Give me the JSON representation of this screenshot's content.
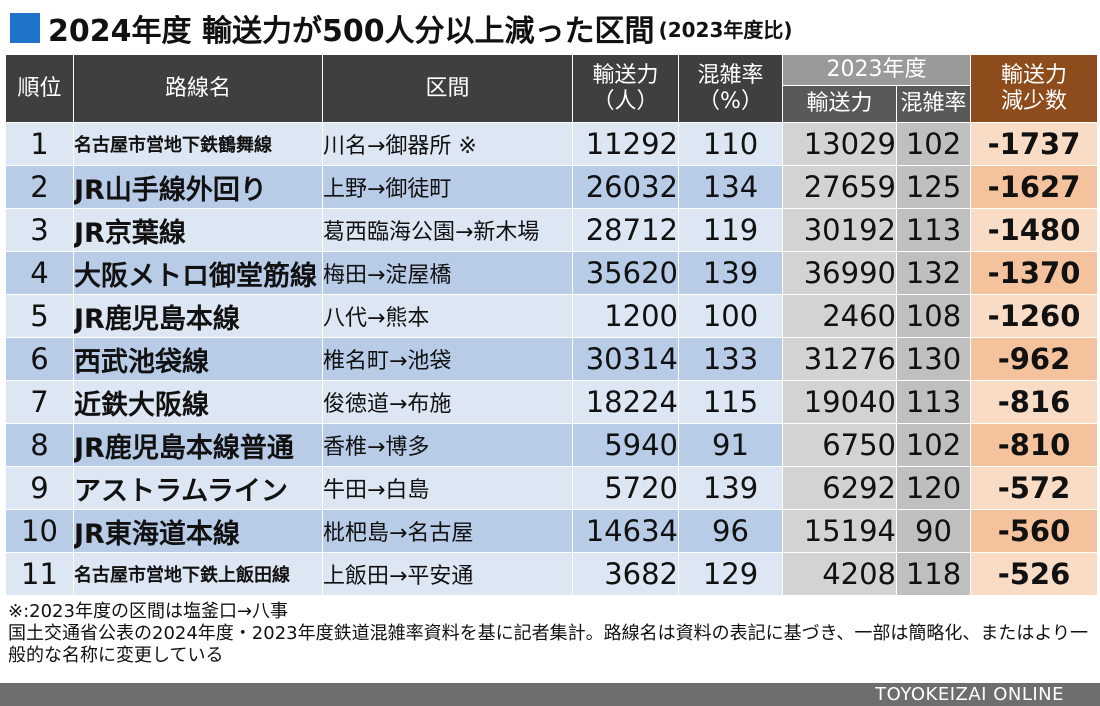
{
  "title": {
    "main": "2024年度 輸送力が500人分以上減った区間",
    "sub": "(2023年度比)"
  },
  "headers": {
    "rank": "順位",
    "line": "路線名",
    "section": "区間",
    "capacity": "輸送力\n（人）",
    "congestion": "混雑率\n（%）",
    "group_2023": "2023年度",
    "capacity_2023": "輸送力",
    "congestion_2023": "混雑率",
    "decrease": "輸送力\n減少数"
  },
  "rows": [
    {
      "rank": "1",
      "line": "名古屋市営地下鉄鶴舞線",
      "section": "川名→御器所 ※",
      "capacity": "11292",
      "congestion": "110",
      "capacity_2023": "13029",
      "congestion_2023": "102",
      "decrease": "-1737"
    },
    {
      "rank": "2",
      "line": "JR山手線外回り",
      "section": "上野→御徒町",
      "capacity": "26032",
      "congestion": "134",
      "capacity_2023": "27659",
      "congestion_2023": "125",
      "decrease": "-1627"
    },
    {
      "rank": "3",
      "line": "JR京葉線",
      "section": "葛西臨海公園→新木場",
      "capacity": "28712",
      "congestion": "119",
      "capacity_2023": "30192",
      "congestion_2023": "113",
      "decrease": "-1480"
    },
    {
      "rank": "4",
      "line": "大阪メトロ御堂筋線",
      "section": "梅田→淀屋橋",
      "capacity": "35620",
      "congestion": "139",
      "capacity_2023": "36990",
      "congestion_2023": "132",
      "decrease": "-1370"
    },
    {
      "rank": "5",
      "line": "JR鹿児島本線",
      "section": "八代→熊本",
      "capacity": "1200",
      "congestion": "100",
      "capacity_2023": "2460",
      "congestion_2023": "108",
      "decrease": "-1260"
    },
    {
      "rank": "6",
      "line": "西武池袋線",
      "section": "椎名町→池袋",
      "capacity": "30314",
      "congestion": "133",
      "capacity_2023": "31276",
      "congestion_2023": "130",
      "decrease": "-962"
    },
    {
      "rank": "7",
      "line": "近鉄大阪線",
      "section": "俊徳道→布施",
      "capacity": "18224",
      "congestion": "115",
      "capacity_2023": "19040",
      "congestion_2023": "113",
      "decrease": "-816"
    },
    {
      "rank": "8",
      "line": "JR鹿児島本線普通",
      "section": "香椎→博多",
      "capacity": "5940",
      "congestion": "91",
      "capacity_2023": "6750",
      "congestion_2023": "102",
      "decrease": "-810"
    },
    {
      "rank": "9",
      "line": "アストラムライン",
      "section": "牛田→白島",
      "capacity": "5720",
      "congestion": "139",
      "capacity_2023": "6292",
      "congestion_2023": "120",
      "decrease": "-572"
    },
    {
      "rank": "10",
      "line": "JR東海道本線",
      "section": "枇杷島→名古屋",
      "capacity": "14634",
      "congestion": "96",
      "capacity_2023": "15194",
      "congestion_2023": "90",
      "decrease": "-560"
    },
    {
      "rank": "11",
      "line": "名古屋市営地下鉄上飯田線",
      "section": "上飯田→平安通",
      "capacity": "3682",
      "congestion": "129",
      "capacity_2023": "4208",
      "congestion_2023": "118",
      "decrease": "-526"
    }
  ],
  "notes": {
    "note1": "※:2023年度の区間は塩釜口→八事",
    "note2": "国土交通省公表の2024年度・2023年度鉄道混雑率資料を基に記者集計。路線名は資料の表記に基づき、一部は簡略化、またはより一般的な名称に変更している"
  },
  "brand": "TOYOKEIZAI ONLINE",
  "colors": {
    "title_square": "#1f73c8",
    "header_dark": "#3f3f3f",
    "header_2023_group": "#9a9a9a",
    "header_2023_sub": "#595959",
    "header_decrease": "#8e4b1c",
    "row_light": "#dde7f4",
    "row_dark": "#b8cce8",
    "cell_2023_light": "#d3d3d3",
    "cell_2023_dark": "#bfbfbf",
    "decrease_light": "#f9dcc6",
    "decrease_dark": "#f4c39d",
    "footer": "#6e6e6e"
  }
}
